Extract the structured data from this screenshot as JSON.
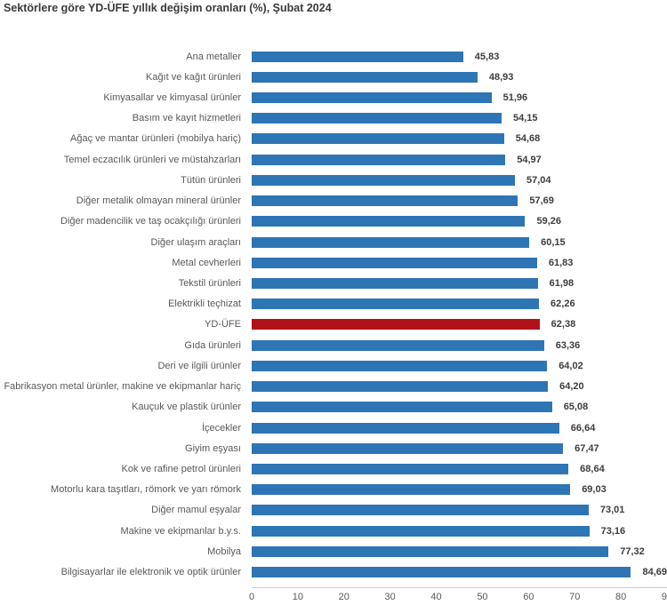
{
  "title": "Sektörlere göre YD-ÜFE yıllık değişim oranları (%), Şubat 2024",
  "colors": {
    "bar": "#2E75B6",
    "highlight_bar": "#B01218",
    "axis_line": "#CCCCCC",
    "category_text": "#595959",
    "value_text": "#3D3D3D",
    "title_text": "#3B3B3B"
  },
  "chart_data": {
    "type": "bar",
    "orientation": "horizontal",
    "title": "Sektörlere göre YD-ÜFE yıllık değişim oranları (%), Şubat 2024",
    "xlabel": "",
    "ylabel": "",
    "xlim": [
      0,
      90
    ],
    "x_ticks": [
      0,
      10,
      20,
      30,
      40,
      50,
      60,
      70,
      80,
      90
    ],
    "grid": false,
    "legend": "none",
    "highlight_label": "YD-ÜFE",
    "items": [
      {
        "label": "Ana metaller",
        "value": 45.83,
        "value_display": "45,83",
        "highlight": false
      },
      {
        "label": "Kağıt ve kağıt ürünleri",
        "value": 48.93,
        "value_display": "48,93",
        "highlight": false
      },
      {
        "label": "Kimyasallar ve kimyasal ürünler",
        "value": 51.96,
        "value_display": "51,96",
        "highlight": false
      },
      {
        "label": "Basım ve kayıt hizmetleri",
        "value": 54.15,
        "value_display": "54,15",
        "highlight": false
      },
      {
        "label": "Ağaç ve mantar ürünleri (mobilya hariç)",
        "value": 54.68,
        "value_display": "54,68",
        "highlight": false
      },
      {
        "label": "Temel eczacılık ürünleri ve müstahzarları",
        "value": 54.97,
        "value_display": "54,97",
        "highlight": false
      },
      {
        "label": "Tütün ürünleri",
        "value": 57.04,
        "value_display": "57,04",
        "highlight": false
      },
      {
        "label": "Diğer metalik olmayan mineral ürünler",
        "value": 57.69,
        "value_display": "57,69",
        "highlight": false
      },
      {
        "label": "Diğer madencilik ve taş ocakçılığı ürünleri",
        "value": 59.26,
        "value_display": "59,26",
        "highlight": false
      },
      {
        "label": "Diğer ulaşım araçları",
        "value": 60.15,
        "value_display": "60,15",
        "highlight": false
      },
      {
        "label": "Metal cevherleri",
        "value": 61.83,
        "value_display": "61,83",
        "highlight": false
      },
      {
        "label": "Tekstil ürünleri",
        "value": 61.98,
        "value_display": "61,98",
        "highlight": false
      },
      {
        "label": "Elektrikli teçhizat",
        "value": 62.26,
        "value_display": "62,26",
        "highlight": false
      },
      {
        "label": "YD-ÜFE",
        "value": 62.38,
        "value_display": "62,38",
        "highlight": true
      },
      {
        "label": "Gıda ürünleri",
        "value": 63.36,
        "value_display": "63,36",
        "highlight": false
      },
      {
        "label": "Deri ve ilgili ürünler",
        "value": 64.02,
        "value_display": "64,02",
        "highlight": false
      },
      {
        "label": "Fabrikasyon metal ürünler, makine ve ekipmanlar hariç",
        "value": 64.2,
        "value_display": "64,20",
        "highlight": false
      },
      {
        "label": "Kauçuk ve plastik ürünler",
        "value": 65.08,
        "value_display": "65,08",
        "highlight": false
      },
      {
        "label": "İçecekler",
        "value": 66.64,
        "value_display": "66,64",
        "highlight": false
      },
      {
        "label": "Giyim eşyası",
        "value": 67.47,
        "value_display": "67,47",
        "highlight": false
      },
      {
        "label": "Kok ve rafine petrol ürünleri",
        "value": 68.64,
        "value_display": "68,64",
        "highlight": false
      },
      {
        "label": "Motorlu kara taşıtları, römork ve yarı römork",
        "value": 69.03,
        "value_display": "69,03",
        "highlight": false
      },
      {
        "label": "Diğer mamul eşyalar",
        "value": 73.01,
        "value_display": "73,01",
        "highlight": false
      },
      {
        "label": "Makine ve ekipmanlar b.y.s.",
        "value": 73.16,
        "value_display": "73,16",
        "highlight": false
      },
      {
        "label": "Mobilya",
        "value": 77.32,
        "value_display": "77,32",
        "highlight": false
      },
      {
        "label": "Bilgisayarlar ile elektronik ve optik ürünler",
        "value": 84.69,
        "value_display": "84,69",
        "highlight": false
      }
    ]
  }
}
